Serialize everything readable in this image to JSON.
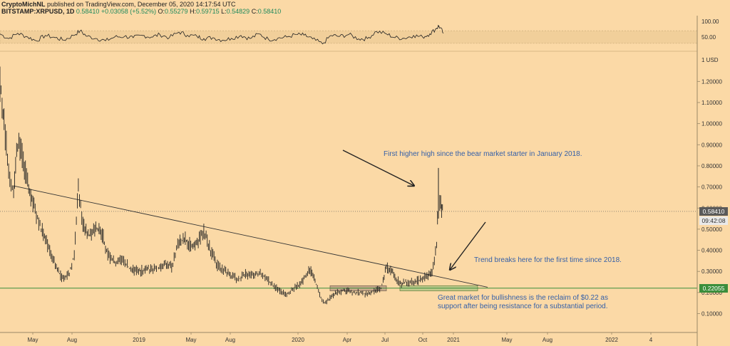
{
  "header": {
    "line1_author": "CryptoMichNL",
    "line1_rest": "published on TradingView.com, December 05, 2020 14:17:54 UTC",
    "symbol": "BITSTAMP:XRPUSD, 1D",
    "last": "0.58410",
    "change": "+0.03058 (+5.52%)",
    "o_label": "O:",
    "o_value": "0.55279",
    "h_label": "H:",
    "h_value": "0.59715",
    "l_label": "L:",
    "l_value": "0.54829",
    "c_label": "C:",
    "c_value": "0.58410"
  },
  "price_labels": {
    "current": "0.58410",
    "countdown": "09:42:08",
    "support": "0.22055"
  },
  "colors": {
    "background": "#fbd9a6",
    "candle": "#222222",
    "annotation_text": "#3560a8",
    "support_line": "#3b8e3b",
    "support_zone": "#b9c98a",
    "resistance_zone": "#c4a48a",
    "current_price_box": "#5a5a5a",
    "countdown_box": "#e9e9e9",
    "support_box": "#3b8e3b"
  },
  "chart_data": [
    {
      "type": "line",
      "name": "rsi",
      "y_ticks": [
        "100.00",
        "50.00"
      ],
      "ylim": [
        0,
        100
      ],
      "band": [
        30,
        70
      ],
      "x": [
        "2018-04-01",
        "2018-04-20",
        "2018-05-10",
        "2018-06-01",
        "2018-06-20",
        "2018-07-10",
        "2018-08-01",
        "2018-08-20",
        "2018-09-10",
        "2018-09-25",
        "2018-10-10",
        "2018-11-01",
        "2018-11-20",
        "2018-12-10",
        "2019-01-01",
        "2019-01-20",
        "2019-02-10",
        "2019-03-01",
        "2019-03-20",
        "2019-04-10",
        "2019-05-01",
        "2019-05-20",
        "2019-06-10",
        "2019-06-25",
        "2019-07-15",
        "2019-08-05",
        "2019-08-25",
        "2019-09-15",
        "2019-10-05",
        "2019-10-25",
        "2019-11-15",
        "2019-12-05",
        "2019-12-25",
        "2020-01-15",
        "2020-02-01",
        "2020-02-20",
        "2020-03-13",
        "2020-04-01",
        "2020-04-20",
        "2020-05-10",
        "2020-06-01",
        "2020-06-20",
        "2020-07-10",
        "2020-08-01",
        "2020-08-20",
        "2020-09-10",
        "2020-09-30",
        "2020-10-20",
        "2020-11-05",
        "2020-11-20",
        "2020-11-25",
        "2020-12-05"
      ],
      "y": [
        60,
        45,
        62,
        50,
        38,
        55,
        48,
        40,
        55,
        70,
        52,
        45,
        38,
        50,
        52,
        48,
        55,
        50,
        58,
        48,
        66,
        56,
        52,
        45,
        48,
        40,
        46,
        55,
        45,
        60,
        42,
        46,
        50,
        58,
        56,
        44,
        28,
        55,
        52,
        58,
        44,
        45,
        68,
        60,
        48,
        46,
        55,
        50,
        60,
        78,
        86,
        62
      ]
    },
    {
      "type": "line",
      "name": "price",
      "y_ticks": [
        "1.20000",
        "1.10000",
        "1.00000",
        "0.90000",
        "0.80000",
        "0.70000",
        "0.60000",
        "0.50000",
        "0.40000",
        "0.30000",
        "0.20000",
        "0.10000"
      ],
      "y_unit": "USD",
      "x_ticks": [
        "May",
        "Aug",
        "2019",
        "May",
        "Aug",
        "2020",
        "Apr",
        "Jul",
        "Oct",
        "2021",
        "May",
        "Aug",
        "2022",
        "4"
      ],
      "ylim": [
        0.0,
        1.25
      ],
      "x": [
        "2018-04-01",
        "2018-04-10",
        "2018-04-20",
        "2018-05-01",
        "2018-05-10",
        "2018-05-20",
        "2018-06-01",
        "2018-06-15",
        "2018-07-01",
        "2018-07-15",
        "2018-08-01",
        "2018-08-15",
        "2018-09-01",
        "2018-09-12",
        "2018-09-21",
        "2018-10-01",
        "2018-10-15",
        "2018-11-01",
        "2018-11-15",
        "2018-11-25",
        "2018-12-10",
        "2018-12-25",
        "2019-01-15",
        "2019-02-01",
        "2019-02-20",
        "2019-03-10",
        "2019-04-01",
        "2019-04-15",
        "2019-05-01",
        "2019-05-15",
        "2019-06-01",
        "2019-06-15",
        "2019-06-25",
        "2019-07-10",
        "2019-07-25",
        "2019-08-10",
        "2019-08-25",
        "2019-09-10",
        "2019-09-25",
        "2019-10-10",
        "2019-10-25",
        "2019-11-10",
        "2019-11-25",
        "2019-12-10",
        "2019-12-25",
        "2020-01-10",
        "2020-01-25",
        "2020-02-14",
        "2020-02-28",
        "2020-03-12",
        "2020-03-20",
        "2020-04-01",
        "2020-04-15",
        "2020-05-01",
        "2020-05-20",
        "2020-06-05",
        "2020-06-20",
        "2020-07-05",
        "2020-07-20",
        "2020-08-01",
        "2020-08-15",
        "2020-09-01",
        "2020-09-15",
        "2020-10-01",
        "2020-10-15",
        "2020-11-01",
        "2020-11-10",
        "2020-11-20",
        "2020-11-24",
        "2020-11-27",
        "2020-12-01",
        "2020-12-05"
      ],
      "y": [
        1.2,
        1.0,
        0.78,
        0.68,
        0.9,
        0.85,
        0.72,
        0.6,
        0.5,
        0.42,
        0.33,
        0.27,
        0.29,
        0.38,
        0.7,
        0.52,
        0.47,
        0.5,
        0.46,
        0.38,
        0.34,
        0.36,
        0.31,
        0.3,
        0.31,
        0.31,
        0.34,
        0.32,
        0.44,
        0.45,
        0.41,
        0.45,
        0.49,
        0.4,
        0.33,
        0.3,
        0.28,
        0.26,
        0.29,
        0.28,
        0.29,
        0.27,
        0.23,
        0.21,
        0.19,
        0.22,
        0.24,
        0.31,
        0.24,
        0.16,
        0.15,
        0.18,
        0.2,
        0.21,
        0.2,
        0.2,
        0.19,
        0.21,
        0.22,
        0.32,
        0.29,
        0.24,
        0.25,
        0.25,
        0.26,
        0.28,
        0.3,
        0.42,
        0.69,
        0.62,
        0.6,
        0.58
      ]
    }
  ],
  "annotations": {
    "higher_high": "First higher high since the bear market starter in January 2018.",
    "trend_break": "Trend breaks here for the first time since 2018.",
    "reclaim_line1": "Great market for bullishness is the reclaim of $0.22 as",
    "reclaim_line2": "support after being resistance for a substantial period."
  }
}
